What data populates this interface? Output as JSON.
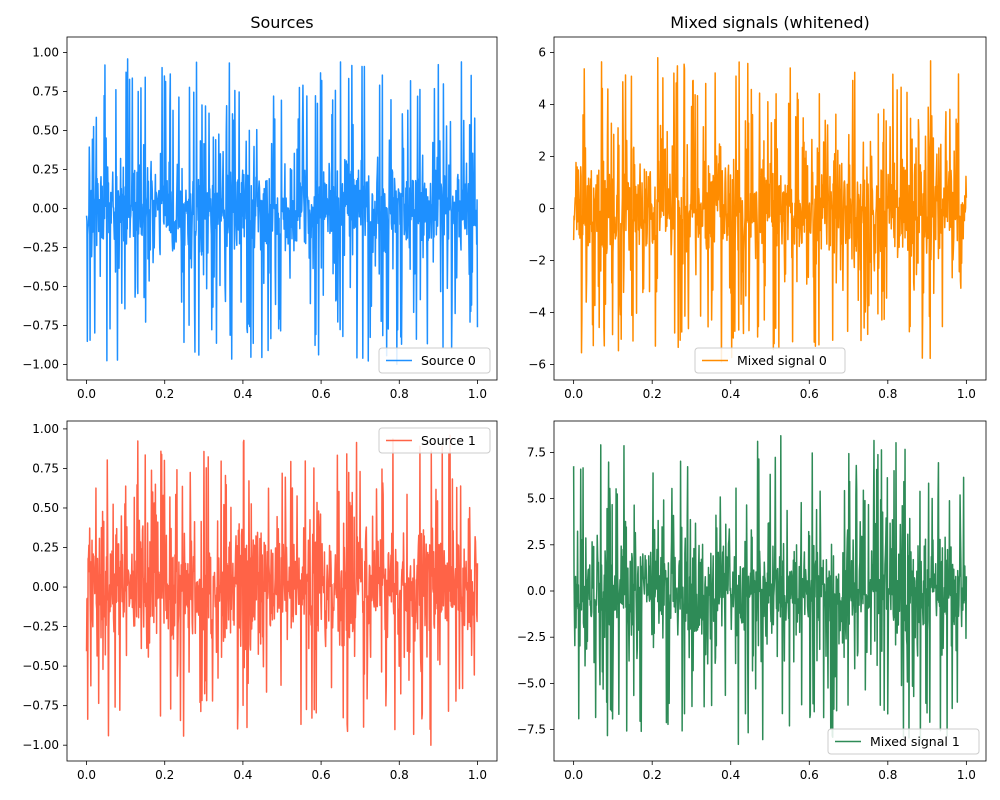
{
  "figure": {
    "background": "#ffffff"
  },
  "chart_data": [
    {
      "type": "line",
      "panel": "top-left",
      "title": "Sources",
      "xlabel": "",
      "ylabel": "",
      "xlim": [
        -0.05,
        1.05
      ],
      "ylim": [
        -1.1,
        1.1
      ],
      "xticks": [
        0.0,
        0.2,
        0.4,
        0.6,
        0.8,
        1.0
      ],
      "xtick_labels": [
        "0.0",
        "0.2",
        "0.4",
        "0.6",
        "0.8",
        "1.0"
      ],
      "yticks": [
        -1.0,
        -0.75,
        -0.5,
        -0.25,
        0.0,
        0.25,
        0.5,
        0.75,
        1.0
      ],
      "ytick_labels": [
        "−1.00",
        "−0.75",
        "−0.50",
        "−0.25",
        "0.00",
        "0.25",
        "0.50",
        "0.75",
        "1.00"
      ],
      "grid": false,
      "legend_position": "lower-right",
      "series": [
        {
          "name": "Source 0",
          "color": "#1e90ff",
          "noise": {
            "points": 1000,
            "x_range": [
              0,
              1
            ],
            "core_amplitude": 0.3,
            "peak_min": -1.0,
            "peak_max": 0.96,
            "seed": 11
          }
        }
      ]
    },
    {
      "type": "line",
      "panel": "top-right",
      "title": "Mixed signals (whitened)",
      "xlabel": "",
      "ylabel": "",
      "xlim": [
        -0.05,
        1.05
      ],
      "ylim": [
        -6.6,
        6.6
      ],
      "xticks": [
        0.0,
        0.2,
        0.4,
        0.6,
        0.8,
        1.0
      ],
      "xtick_labels": [
        "0.0",
        "0.2",
        "0.4",
        "0.6",
        "0.8",
        "1.0"
      ],
      "yticks": [
        -6,
        -4,
        -2,
        0,
        2,
        4,
        6
      ],
      "ytick_labels": [
        "−6",
        "−4",
        "−2",
        "0",
        "2",
        "4",
        "6"
      ],
      "grid": false,
      "legend_position": "lower-center",
      "series": [
        {
          "name": "Mixed signal 0",
          "color": "#ff8c00",
          "noise": {
            "points": 1000,
            "x_range": [
              0,
              1
            ],
            "core_amplitude": 2.0,
            "peak_min": -5.9,
            "peak_max": 5.8,
            "seed": 23
          }
        }
      ]
    },
    {
      "type": "line",
      "panel": "bottom-left",
      "title": "",
      "xlabel": "",
      "ylabel": "",
      "xlim": [
        -0.05,
        1.05
      ],
      "ylim": [
        -1.1,
        1.05
      ],
      "xticks": [
        0.0,
        0.2,
        0.4,
        0.6,
        0.8,
        1.0
      ],
      "xtick_labels": [
        "0.0",
        "0.2",
        "0.4",
        "0.6",
        "0.8",
        "1.0"
      ],
      "yticks": [
        -1.0,
        -0.75,
        -0.5,
        -0.25,
        0.0,
        0.25,
        0.5,
        0.75,
        1.0
      ],
      "ytick_labels": [
        "−1.00",
        "−0.75",
        "−0.50",
        "−0.25",
        "0.00",
        "0.25",
        "0.50",
        "0.75",
        "1.00"
      ],
      "grid": false,
      "legend_position": "upper-right",
      "series": [
        {
          "name": "Source 1",
          "color": "#ff6347",
          "noise": {
            "points": 1000,
            "x_range": [
              0,
              1
            ],
            "core_amplitude": 0.33,
            "peak_min": -1.0,
            "peak_max": 0.96,
            "seed": 37
          }
        }
      ]
    },
    {
      "type": "line",
      "panel": "bottom-right",
      "title": "",
      "xlabel": "",
      "ylabel": "",
      "xlim": [
        -0.05,
        1.05
      ],
      "ylim": [
        -9.2,
        9.2
      ],
      "xticks": [
        0.0,
        0.2,
        0.4,
        0.6,
        0.8,
        1.0
      ],
      "xtick_labels": [
        "0.0",
        "0.2",
        "0.4",
        "0.6",
        "0.8",
        "1.0"
      ],
      "yticks": [
        -7.5,
        -5.0,
        -2.5,
        0.0,
        2.5,
        5.0,
        7.5
      ],
      "ytick_labels": [
        "−7.5",
        "−5.0",
        "−2.5",
        "0.0",
        "2.5",
        "5.0",
        "7.5"
      ],
      "grid": false,
      "legend_position": "lower-right",
      "series": [
        {
          "name": "Mixed signal 1",
          "color": "#2e8b57",
          "noise": {
            "points": 1000,
            "x_range": [
              0,
              1
            ],
            "core_amplitude": 2.7,
            "peak_min": -8.3,
            "peak_max": 8.4,
            "seed": 53
          }
        }
      ]
    }
  ]
}
